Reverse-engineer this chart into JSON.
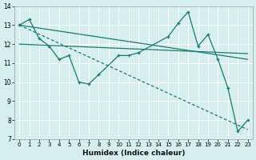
{
  "xlabel": "Humidex (Indice chaleur)",
  "background_color": "#d6eef0",
  "grid_color": "#ffffff",
  "line_color": "#1a7a6e",
  "xlim": [
    -0.5,
    23.5
  ],
  "ylim": [
    7,
    14
  ],
  "yticks": [
    7,
    8,
    9,
    10,
    11,
    12,
    13,
    14
  ],
  "xticks": [
    0,
    1,
    2,
    3,
    4,
    5,
    6,
    7,
    8,
    9,
    10,
    11,
    12,
    13,
    14,
    15,
    16,
    17,
    18,
    19,
    20,
    21,
    22,
    23
  ],
  "series0_x": [
    0,
    1,
    2,
    3,
    4,
    5,
    6,
    7,
    8,
    10,
    11,
    12,
    15,
    16,
    17,
    18,
    19,
    20,
    21,
    22,
    23
  ],
  "series0_y": [
    13.0,
    13.3,
    12.3,
    11.9,
    11.2,
    11.4,
    10.0,
    9.9,
    10.4,
    11.4,
    11.4,
    11.55,
    12.4,
    13.1,
    13.7,
    11.9,
    12.5,
    11.2,
    9.7,
    7.4,
    8.0
  ],
  "series1_x": [
    0,
    23
  ],
  "series1_y": [
    13.0,
    11.2
  ],
  "series2_x": [
    0,
    23
  ],
  "series2_y": [
    12.0,
    11.5
  ],
  "series3_x": [
    0,
    23
  ],
  "series3_y": [
    13.0,
    7.5
  ]
}
